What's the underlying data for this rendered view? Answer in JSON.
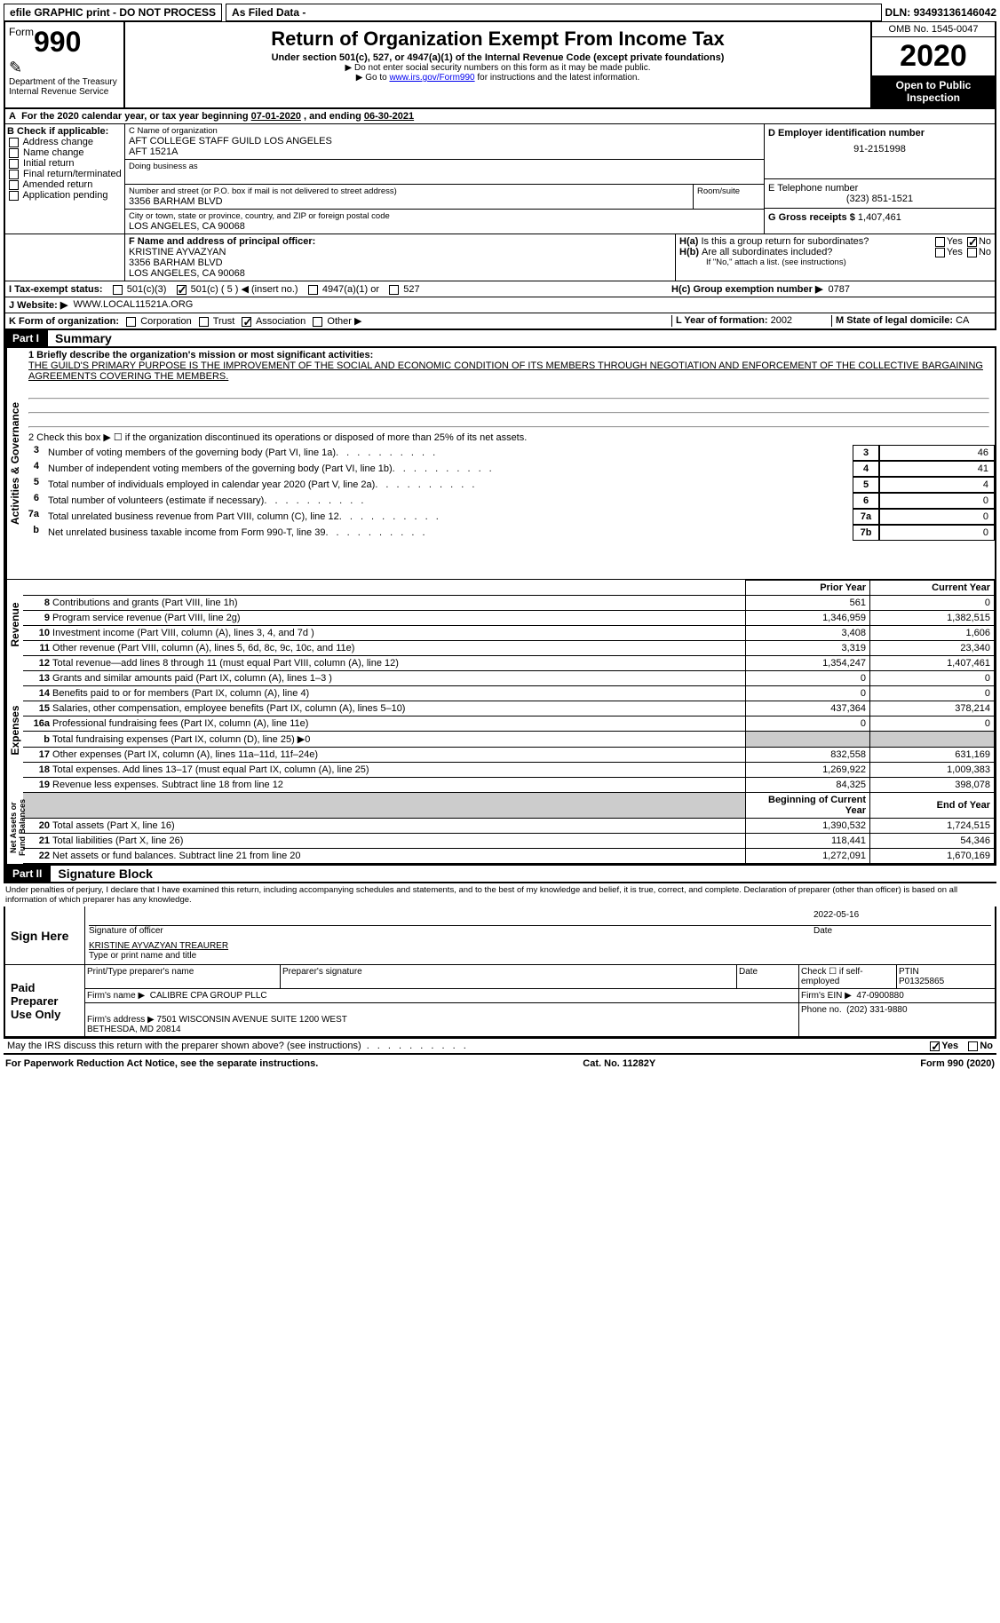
{
  "topbar": {
    "efile": "efile GRAPHIC print - DO NOT PROCESS",
    "asfiled": "As Filed Data -",
    "dln_label": "DLN:",
    "dln": "93493136146042"
  },
  "header": {
    "form_prefix": "Form",
    "form_num": "990",
    "dept": "Department of the Treasury",
    "irs": "Internal Revenue Service",
    "title": "Return of Organization Exempt From Income Tax",
    "subtitle": "Under section 501(c), 527, or 4947(a)(1) of the Internal Revenue Code (except private foundations)",
    "note1": "▶ Do not enter social security numbers on this form as it may be made public.",
    "note2_pre": "▶ Go to ",
    "note2_link": "www.irs.gov/Form990",
    "note2_post": " for instructions and the latest information.",
    "omb": "OMB No. 1545-0047",
    "year": "2020",
    "open": "Open to Public Inspection"
  },
  "lineA": {
    "text_pre": "For the 2020 calendar year, or tax year beginning ",
    "begin": "07-01-2020",
    "mid": " , and ending ",
    "end": "06-30-2021"
  },
  "boxB": {
    "title": "B Check if applicable:",
    "items": [
      "Address change",
      "Name change",
      "Initial return",
      "Final return/terminated",
      "Amended return",
      "Application pending"
    ]
  },
  "boxC": {
    "label": "C Name of organization",
    "name1": "AFT COLLEGE STAFF GUILD LOS ANGELES",
    "name2": "AFT 1521A",
    "dba_label": "Doing business as",
    "addr_label": "Number and street (or P.O. box if mail is not delivered to street address)",
    "room_label": "Room/suite",
    "street": "3356 BARHAM BLVD",
    "city_label": "City or town, state or province, country, and ZIP or foreign postal code",
    "city": "LOS ANGELES, CA  90068"
  },
  "boxD": {
    "label": "D Employer identification number",
    "value": "91-2151998"
  },
  "boxE": {
    "label": "E Telephone number",
    "value": "(323) 851-1521"
  },
  "boxG": {
    "label": "G Gross receipts $",
    "value": "1,407,461"
  },
  "boxF": {
    "label": "F  Name and address of principal officer:",
    "name": "KRISTINE AYVAZYAN",
    "street": "3356 BARHAM BLVD",
    "city": "LOS ANGELES, CA  90068"
  },
  "boxH": {
    "ha": "H(a)  Is this a group return for subordinates?",
    "hb": "H(b)  Are all subordinates included?",
    "hb_note": "If \"No,\" attach a list. (see instructions)",
    "hc": "H(c)  Group exemption number ▶",
    "hc_val": "0787",
    "yes": "Yes",
    "no": "No"
  },
  "lineI": {
    "label": "I   Tax-exempt status:",
    "opts": [
      "501(c)(3)",
      "501(c) ( 5 ) ◀ (insert no.)",
      "4947(a)(1) or",
      "527"
    ]
  },
  "lineJ": {
    "label": "J   Website: ▶",
    "value": "WWW.LOCAL11521A.ORG"
  },
  "lineK": {
    "label": "K Form of organization:",
    "opts": [
      "Corporation",
      "Trust",
      "Association",
      "Other ▶"
    ]
  },
  "lineL": {
    "label": "L Year of formation:",
    "value": "2002"
  },
  "lineM": {
    "label": "M State of legal domicile:",
    "value": "CA"
  },
  "partI": {
    "tab": "Part I",
    "title": "Summary",
    "q1": "1  Briefly describe the organization's mission or most significant activities:",
    "mission": "THE GUILD'S PRIMARY PURPOSE IS THE IMPROVEMENT OF THE SOCIAL AND ECONOMIC CONDITION OF ITS MEMBERS THROUGH NEGOTIATION AND ENFORCEMENT OF THE COLLECTIVE BARGAINING AGREEMENTS COVERING THE MEMBERS.",
    "q2": "2   Check this box ▶ ☐ if the organization discontinued its operations or disposed of more than 25% of its net assets.",
    "gov_label": "Activities & Governance",
    "rev_label": "Revenue",
    "exp_label": "Expenses",
    "net_label": "Net Assets or Fund Balances",
    "lines_gov": [
      {
        "n": "3",
        "t": "Number of voting members of the governing body (Part VI, line 1a)",
        "k": "3",
        "v": "46"
      },
      {
        "n": "4",
        "t": "Number of independent voting members of the governing body (Part VI, line 1b)",
        "k": "4",
        "v": "41"
      },
      {
        "n": "5",
        "t": "Total number of individuals employed in calendar year 2020 (Part V, line 2a)",
        "k": "5",
        "v": "4"
      },
      {
        "n": "6",
        "t": "Total number of volunteers (estimate if necessary)",
        "k": "6",
        "v": "0"
      },
      {
        "n": "7a",
        "t": "Total unrelated business revenue from Part VIII, column (C), line 12",
        "k": "7a",
        "v": "0"
      },
      {
        "n": "b",
        "t": "Net unrelated business taxable income from Form 990-T, line 39",
        "k": "7b",
        "v": "0"
      }
    ],
    "col_prior": "Prior Year",
    "col_current": "Current Year",
    "col_boy": "Beginning of Current Year",
    "col_eoy": "End of Year",
    "lines_fin": [
      {
        "sec": "rev",
        "n": "8",
        "t": "Contributions and grants (Part VIII, line 1h)",
        "p": "561",
        "c": "0"
      },
      {
        "sec": "rev",
        "n": "9",
        "t": "Program service revenue (Part VIII, line 2g)",
        "p": "1,346,959",
        "c": "1,382,515"
      },
      {
        "sec": "rev",
        "n": "10",
        "t": "Investment income (Part VIII, column (A), lines 3, 4, and 7d )",
        "p": "3,408",
        "c": "1,606"
      },
      {
        "sec": "rev",
        "n": "11",
        "t": "Other revenue (Part VIII, column (A), lines 5, 6d, 8c, 9c, 10c, and 11e)",
        "p": "3,319",
        "c": "23,340"
      },
      {
        "sec": "rev",
        "n": "12",
        "t": "Total revenue—add lines 8 through 11 (must equal Part VIII, column (A), line 12)",
        "p": "1,354,247",
        "c": "1,407,461"
      },
      {
        "sec": "exp",
        "n": "13",
        "t": "Grants and similar amounts paid (Part IX, column (A), lines 1–3 )",
        "p": "0",
        "c": "0"
      },
      {
        "sec": "exp",
        "n": "14",
        "t": "Benefits paid to or for members (Part IX, column (A), line 4)",
        "p": "0",
        "c": "0"
      },
      {
        "sec": "exp",
        "n": "15",
        "t": "Salaries, other compensation, employee benefits (Part IX, column (A), lines 5–10)",
        "p": "437,364",
        "c": "378,214"
      },
      {
        "sec": "exp",
        "n": "16a",
        "t": "Professional fundraising fees (Part IX, column (A), line 11e)",
        "p": "0",
        "c": "0"
      },
      {
        "sec": "exp",
        "n": "b",
        "t": "Total fundraising expenses (Part IX, column (D), line 25) ▶0",
        "p": "",
        "c": "",
        "grey": true
      },
      {
        "sec": "exp",
        "n": "17",
        "t": "Other expenses (Part IX, column (A), lines 11a–11d, 11f–24e)",
        "p": "832,558",
        "c": "631,169"
      },
      {
        "sec": "exp",
        "n": "18",
        "t": "Total expenses. Add lines 13–17 (must equal Part IX, column (A), line 25)",
        "p": "1,269,922",
        "c": "1,009,383"
      },
      {
        "sec": "exp",
        "n": "19",
        "t": "Revenue less expenses. Subtract line 18 from line 12",
        "p": "84,325",
        "c": "398,078"
      },
      {
        "sec": "net",
        "n": "20",
        "t": "Total assets (Part X, line 16)",
        "p": "1,390,532",
        "c": "1,724,515"
      },
      {
        "sec": "net",
        "n": "21",
        "t": "Total liabilities (Part X, line 26)",
        "p": "118,441",
        "c": "54,346"
      },
      {
        "sec": "net",
        "n": "22",
        "t": "Net assets or fund balances. Subtract line 21 from line 20",
        "p": "1,272,091",
        "c": "1,670,169"
      }
    ]
  },
  "partII": {
    "tab": "Part II",
    "title": "Signature Block",
    "perjury": "Under penalties of perjury, I declare that I have examined this return, including accompanying schedules and statements, and to the best of my knowledge and belief, it is true, correct, and complete. Declaration of preparer (other than officer) is based on all information of which preparer has any knowledge.",
    "sign_here": "Sign Here",
    "sig_officer": "Signature of officer",
    "date": "Date",
    "sig_date": "2022-05-16",
    "officer_name": "KRISTINE AYVAZYAN TREAURER",
    "type_name": "Type or print name and title",
    "paid": "Paid Preparer Use Only",
    "prep_name_label": "Print/Type preparer's name",
    "prep_sig_label": "Preparer's signature",
    "date_label": "Date",
    "check_self": "Check ☐ if self-employed",
    "ptin_label": "PTIN",
    "ptin": "P01325865",
    "firm_name_label": "Firm's name    ▶",
    "firm_name": "CALIBRE CPA GROUP PLLC",
    "firm_ein_label": "Firm's EIN ▶",
    "firm_ein": "47-0900880",
    "firm_addr_label": "Firm's address ▶",
    "firm_addr": "7501 WISCONSIN AVENUE SUITE 1200 WEST\nBETHESDA, MD  20814",
    "phone_label": "Phone no.",
    "phone": "(202) 331-9880",
    "discuss": "May the IRS discuss this return with the preparer shown above? (see instructions)",
    "yes": "Yes",
    "no": "No"
  },
  "footer": {
    "left": "For Paperwork Reduction Act Notice, see the separate instructions.",
    "mid": "Cat. No. 11282Y",
    "right": "Form 990 (2020)"
  }
}
